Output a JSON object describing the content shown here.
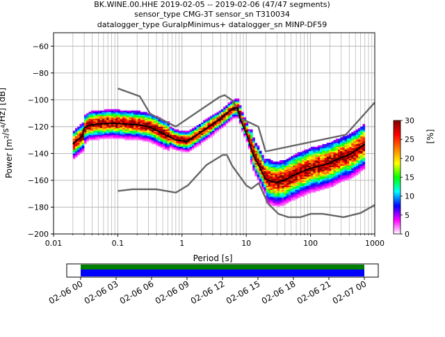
{
  "title": {
    "line1": "BK.WINE.00.HHE   2019-02-05 -- 2019-02-06  (47/47 segments)",
    "line2": "sensor_type CMG-3T sensor_sn T310034",
    "line3": "datalogger_type GuralpMinimus+ datalogger_sn MINP-DF59"
  },
  "colors": {
    "noise_model": "#666666",
    "mode_line": "#000000",
    "grid": "#b0b0b0",
    "timeline_top": "#008000",
    "timeline_bottom": "#0000ff"
  },
  "chart_data": [
    {
      "type": "heatmap",
      "subtype": "probabilistic power spectral density",
      "xlabel": "Period [s]",
      "ylabel": "Power [m²/s⁴/Hz] [dB]",
      "xscale": "log",
      "xlim": [
        0.01,
        1000
      ],
      "ylim": [
        -200,
        -50
      ],
      "xticks": [
        0.01,
        0.1,
        1,
        10,
        100,
        1000
      ],
      "xtick_labels": [
        "0.01",
        "0.1",
        "1",
        "10",
        "100",
        "1000"
      ],
      "yticks": [
        -200,
        -180,
        -160,
        -140,
        -120,
        -100,
        -80,
        -60
      ],
      "grid": true,
      "colorbar": {
        "label": "[%]",
        "min": 0,
        "max": 30,
        "ticks": [
          0,
          5,
          10,
          15,
          20,
          25,
          30
        ],
        "stops": [
          "#ffffff",
          "#ff00ff",
          "#0000ff",
          "#00ffff",
          "#00ff00",
          "#ffff00",
          "#ff8000",
          "#ff0000",
          "#800000"
        ]
      },
      "series": [
        {
          "role": "high_noise_model",
          "x": [
            0.1,
            0.22,
            0.32,
            0.8,
            3.8,
            4.6,
            6.3,
            7.9,
            15.4,
            20,
            354.8,
            10000
          ],
          "y": [
            -91.5,
            -97.4,
            -110.5,
            -120,
            -98,
            -96.5,
            -101,
            -113.5,
            -120,
            -138.5,
            -126,
            -48.5
          ]
        },
        {
          "role": "low_noise_model",
          "x": [
            0.1,
            0.17,
            0.4,
            0.8,
            1.24,
            2.4,
            4.3,
            5,
            6,
            10,
            12,
            15.6,
            21.9,
            31.6,
            45,
            70,
            101,
            154,
            328,
            600,
            10000
          ],
          "y": [
            -168,
            -166.7,
            -166.7,
            -169.2,
            -163.7,
            -148.6,
            -141.1,
            -141.1,
            -149,
            -163.8,
            -166.2,
            -162.1,
            -177.5,
            -185,
            -187.5,
            -187.5,
            -185,
            -185,
            -187.5,
            -184.4,
            -151.5
          ]
        },
        {
          "role": "mode",
          "x": [
            0.02,
            0.022,
            0.025,
            0.028,
            0.03,
            0.035,
            0.05,
            0.08,
            0.12,
            0.2,
            0.3,
            0.5,
            0.8,
            1.2,
            1.5,
            2,
            3,
            4,
            5,
            6,
            7,
            7.5,
            8,
            9,
            10,
            11,
            12,
            13,
            14,
            15,
            16,
            18,
            20,
            25,
            30,
            40,
            50,
            70,
            100,
            150,
            200,
            300,
            400,
            500,
            600,
            700
          ],
          "y": [
            -133,
            -131,
            -129,
            -127,
            -121,
            -119,
            -118,
            -117.5,
            -118,
            -118.5,
            -120,
            -125,
            -130,
            -131,
            -128,
            -124,
            -118,
            -114,
            -110,
            -107,
            -106,
            -108,
            -114,
            -120,
            -125,
            -131,
            -137,
            -142,
            -145,
            -147,
            -150,
            -155,
            -159,
            -161,
            -161.5,
            -160,
            -157,
            -154,
            -151,
            -149,
            -147,
            -143,
            -141,
            -138,
            -135,
            -133
          ]
        }
      ]
    },
    {
      "type": "timeline",
      "tick_labels": [
        "02-06 00",
        "02-06 03",
        "02-06 06",
        "02-06 09",
        "02-06 12",
        "02-06 15",
        "02-06 18",
        "02-06 21",
        "02-07 00"
      ],
      "tick_hours": [
        0,
        3,
        6,
        9,
        12,
        15,
        18,
        21,
        24
      ]
    }
  ]
}
